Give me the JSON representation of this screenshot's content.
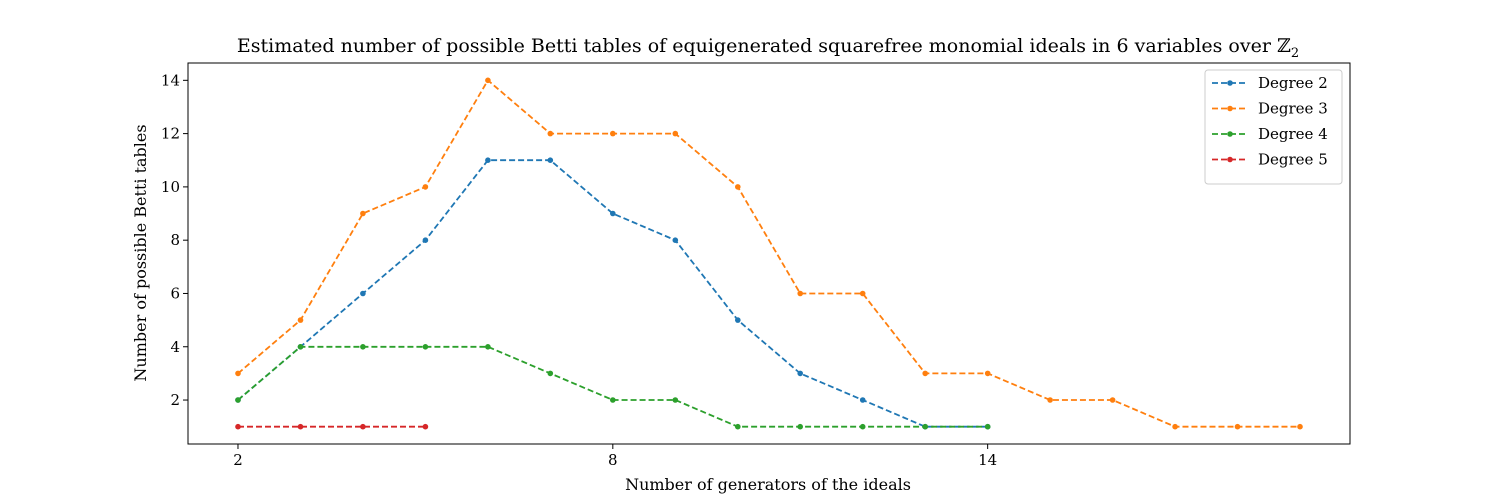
{
  "chart_data": {
    "type": "line",
    "title": "Estimated number of possible Betti tables of equigenerated squarefree monomial ideals in 6 variables over",
    "title_symbol": "ℤ",
    "title_symbol_subscript": "2",
    "xlabel": "Number of generators of the ideals",
    "ylabel": "Number of possible Betti tables",
    "xlim": [
      1.2,
      19.8
    ],
    "ylim": [
      0.35,
      14.65
    ],
    "xticks": [
      2,
      8,
      14
    ],
    "yticks": [
      2,
      4,
      6,
      8,
      10,
      12,
      14
    ],
    "line_style": "dashed",
    "marker": "dot",
    "legend_position": "top-right",
    "series": [
      {
        "name": "Degree 2",
        "color": "#1f77b4",
        "x": [
          2,
          3,
          4,
          5,
          6,
          7,
          8,
          9,
          10,
          11,
          12,
          13,
          14
        ],
        "values": [
          2,
          4,
          6,
          8,
          11,
          11,
          9,
          8,
          5,
          3,
          2,
          1,
          1
        ]
      },
      {
        "name": "Degree 3",
        "color": "#ff7f0e",
        "x": [
          2,
          3,
          4,
          5,
          6,
          7,
          8,
          9,
          10,
          11,
          12,
          13,
          14,
          15,
          16,
          17,
          18,
          19
        ],
        "values": [
          3,
          5,
          9,
          10,
          14,
          12,
          12,
          12,
          10,
          6,
          6,
          3,
          3,
          2,
          2,
          1,
          1,
          1
        ]
      },
      {
        "name": "Degree 4",
        "color": "#2ca02c",
        "x": [
          2,
          3,
          4,
          5,
          6,
          7,
          8,
          9,
          10,
          11,
          12,
          13,
          14
        ],
        "values": [
          2,
          4,
          4,
          4,
          4,
          3,
          2,
          2,
          1,
          1,
          1,
          1,
          1
        ]
      },
      {
        "name": "Degree 5",
        "color": "#d62728",
        "x": [
          2,
          3,
          4,
          5
        ],
        "values": [
          1,
          1,
          1,
          1
        ]
      }
    ]
  }
}
